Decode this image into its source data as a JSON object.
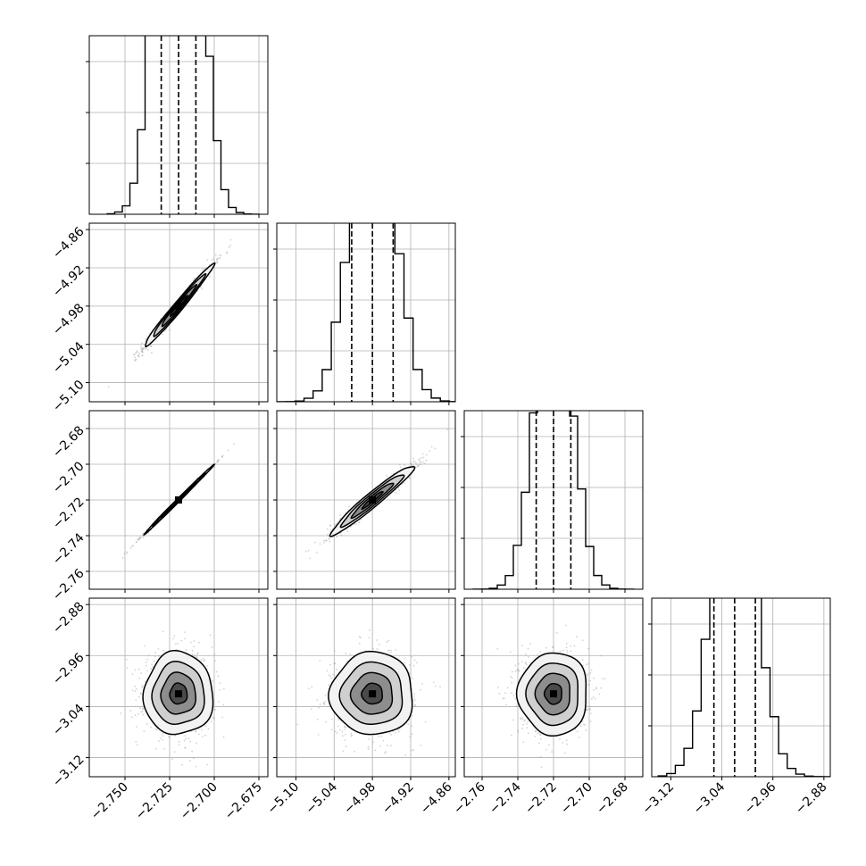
{
  "colors": {
    "ink": "#000000",
    "grid": "#b0b0b0",
    "scatter": "#9e9e9e",
    "background": "#ffffff"
  },
  "chart_data": {
    "type": "corner",
    "parameters": [
      {
        "id": "p0",
        "mean": -2.72,
        "std": 0.0097,
        "quantiles": [
          -2.7297,
          -2.72,
          -2.7103
        ],
        "bins": [
          -2.76,
          -2.675
        ],
        "hist_max": 0.038
      },
      {
        "id": "p1",
        "mean": -4.98,
        "std": 0.0325,
        "quantiles": [
          -5.0125,
          -4.98,
          -4.9475
        ],
        "bins": [
          -5.13,
          -4.845
        ],
        "hist_max": 0.088
      },
      {
        "id": "p2",
        "mean": -2.72,
        "std": 0.0097,
        "quantiles": [
          -2.7297,
          -2.72,
          -2.7103
        ],
        "bins": [
          -2.765,
          -2.675
        ],
        "hist_max": 0.092
      },
      {
        "id": "p3",
        "mean": -3.02,
        "std": 0.0325,
        "quantiles": [
          -3.0525,
          -3.02,
          -2.9875
        ],
        "bins": [
          -3.14,
          -2.87
        ],
        "hist_max": 0.085
      }
    ],
    "correlations": [
      {
        "x": 0,
        "y": 1,
        "rho": 0.985
      },
      {
        "x": 0,
        "y": 2,
        "rho": 0.998
      },
      {
        "x": 1,
        "y": 2,
        "rho": 0.965
      },
      {
        "x": 0,
        "y": 3,
        "rho": 0.0
      },
      {
        "x": 1,
        "y": 3,
        "rho": 0.0
      },
      {
        "x": 2,
        "y": 3,
        "rho": 0.0
      }
    ],
    "contour_levels_sigma": [
      0.5,
      1.0,
      1.5,
      2.0
    ],
    "grid": true,
    "axes": [
      {
        "id": "p0",
        "lim": [
          -2.77,
          -2.67
        ],
        "ticks": [
          {
            "value": -2.75,
            "label": "−2.750"
          },
          {
            "value": -2.725,
            "label": "−2.725"
          },
          {
            "value": -2.7,
            "label": "−2.700"
          },
          {
            "value": -2.675,
            "label": "−2.675"
          }
        ]
      },
      {
        "id": "p1",
        "lim": [
          -5.13,
          -4.85
        ],
        "ticks": [
          {
            "value": -5.1,
            "label": "−5.10"
          },
          {
            "value": -5.04,
            "label": "−5.04"
          },
          {
            "value": -4.98,
            "label": "−4.98"
          },
          {
            "value": -4.92,
            "label": "−4.92"
          },
          {
            "value": -4.86,
            "label": "−4.86"
          }
        ]
      },
      {
        "id": "p2",
        "lim": [
          -2.77,
          -2.67
        ],
        "ticks": [
          {
            "value": -2.76,
            "label": "−2.76"
          },
          {
            "value": -2.74,
            "label": "−2.74"
          },
          {
            "value": -2.72,
            "label": "−2.72"
          },
          {
            "value": -2.7,
            "label": "−2.70"
          },
          {
            "value": -2.68,
            "label": "−2.68"
          }
        ]
      },
      {
        "id": "p3",
        "lim": [
          -3.15,
          -2.87
        ],
        "ticks": [
          {
            "value": -3.12,
            "label": "−3.12"
          },
          {
            "value": -3.04,
            "label": "−3.04"
          },
          {
            "value": -2.96,
            "label": "−2.96"
          },
          {
            "value": -2.88,
            "label": "−2.88"
          }
        ]
      }
    ]
  }
}
